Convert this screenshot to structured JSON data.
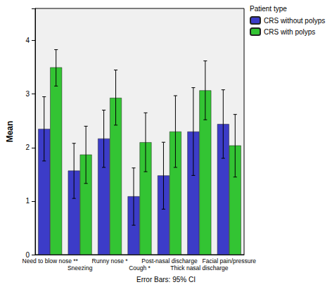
{
  "chart_data": {
    "type": "bar",
    "y_label": "Mean",
    "legend_title": "Patient type",
    "note": "Error Bars: 95% CI",
    "legend": "top-right",
    "grid": false,
    "categories": [
      "Need to blow nose **",
      "Sneezing",
      "Runny nose *",
      "Cough *",
      "Post-nasal discharge",
      "Thick nasal discharge",
      "Facial pain/pressure"
    ],
    "ylim": [
      0,
      4.6
    ],
    "yticks": [
      0,
      1,
      2,
      3,
      4
    ],
    "series": [
      {
        "name": "CRS without polyps",
        "color": "#3c3cc8",
        "values": [
          2.35,
          1.57,
          2.17,
          1.09,
          1.48,
          2.3,
          2.44
        ],
        "ci_low": [
          1.75,
          1.05,
          1.63,
          0.55,
          0.85,
          1.48,
          1.8
        ],
        "ci_high": [
          2.95,
          2.08,
          2.7,
          1.62,
          2.1,
          3.12,
          3.08
        ]
      },
      {
        "name": "CRS with polyps",
        "color": "#33c433",
        "values": [
          3.5,
          1.87,
          2.93,
          2.1,
          2.3,
          3.07,
          2.04
        ],
        "ci_low": [
          3.15,
          1.33,
          2.42,
          1.55,
          1.63,
          2.52,
          1.45
        ],
        "ci_high": [
          3.83,
          2.4,
          3.45,
          2.65,
          2.97,
          3.62,
          2.62
        ]
      }
    ]
  }
}
